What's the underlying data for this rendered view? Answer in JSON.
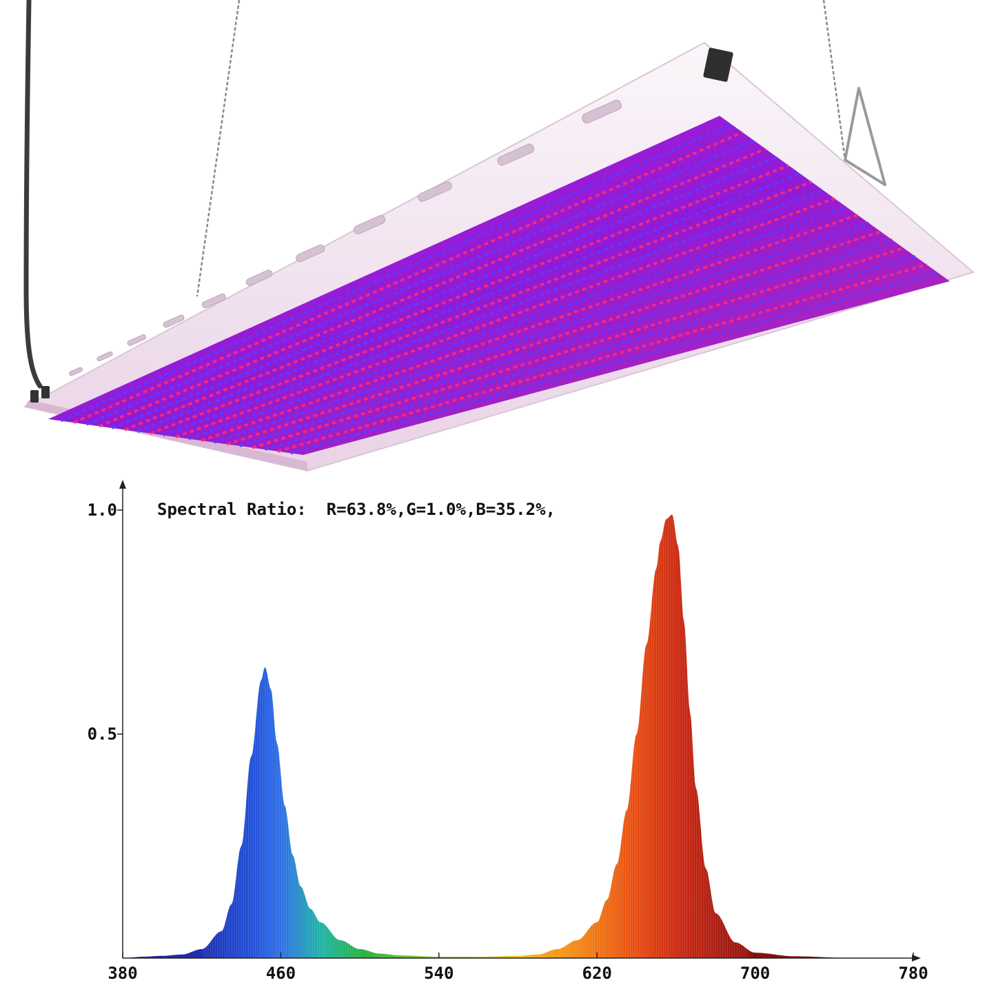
{
  "chart_data": {
    "type": "area",
    "title": "Spectral Ratio:  R=63.8%,G=1.0%,B=35.2%,",
    "xlabel": "",
    "ylabel": "",
    "xlim": [
      380,
      780
    ],
    "ylim": [
      0,
      1.0
    ],
    "x_ticks": [
      "380",
      "460",
      "540",
      "620",
      "700",
      "780"
    ],
    "y_ticks": [
      "1.0",
      "0.5"
    ],
    "grid": false,
    "legend": "none",
    "x": [
      380,
      390,
      400,
      410,
      420,
      430,
      435,
      440,
      445,
      450,
      452,
      455,
      458,
      462,
      466,
      470,
      475,
      480,
      490,
      500,
      510,
      520,
      540,
      560,
      580,
      590,
      600,
      610,
      620,
      625,
      630,
      635,
      640,
      645,
      650,
      652,
      655,
      658,
      661,
      664,
      667,
      670,
      675,
      680,
      690,
      700,
      720,
      750,
      780
    ],
    "series": [
      {
        "values": [
          0.0,
          0.003,
          0.005,
          0.008,
          0.02,
          0.06,
          0.12,
          0.25,
          0.45,
          0.62,
          0.65,
          0.6,
          0.48,
          0.34,
          0.23,
          0.16,
          0.11,
          0.08,
          0.04,
          0.02,
          0.01,
          0.006,
          0.003,
          0.003,
          0.005,
          0.008,
          0.02,
          0.04,
          0.08,
          0.13,
          0.21,
          0.33,
          0.5,
          0.7,
          0.87,
          0.93,
          0.98,
          0.99,
          0.92,
          0.75,
          0.55,
          0.38,
          0.2,
          0.1,
          0.035,
          0.012,
          0.004,
          0.0,
          0.0
        ]
      }
    ]
  },
  "product": {
    "panel_led_colors": [
      "#ff2a6e",
      "#5a3dff"
    ],
    "frame_color": "#f4e8f2",
    "glow_color": "#c21bd8"
  },
  "colors": {
    "axis": "#222222",
    "spectrum_stops": [
      {
        "nm": 380,
        "color": "#2a1a8c"
      },
      {
        "nm": 420,
        "color": "#1f2fb0"
      },
      {
        "nm": 445,
        "color": "#1f4fd8"
      },
      {
        "nm": 460,
        "color": "#2f6fe6"
      },
      {
        "nm": 480,
        "color": "#1fb3a6"
      },
      {
        "nm": 500,
        "color": "#27b24a"
      },
      {
        "nm": 540,
        "color": "#98c832"
      },
      {
        "nm": 580,
        "color": "#f2c51e"
      },
      {
        "nm": 600,
        "color": "#f59a1a"
      },
      {
        "nm": 620,
        "color": "#f07514"
      },
      {
        "nm": 640,
        "color": "#e84c12"
      },
      {
        "nm": 660,
        "color": "#cc2a12"
      },
      {
        "nm": 700,
        "color": "#8e1010"
      },
      {
        "nm": 780,
        "color": "#5a0808"
      }
    ]
  }
}
